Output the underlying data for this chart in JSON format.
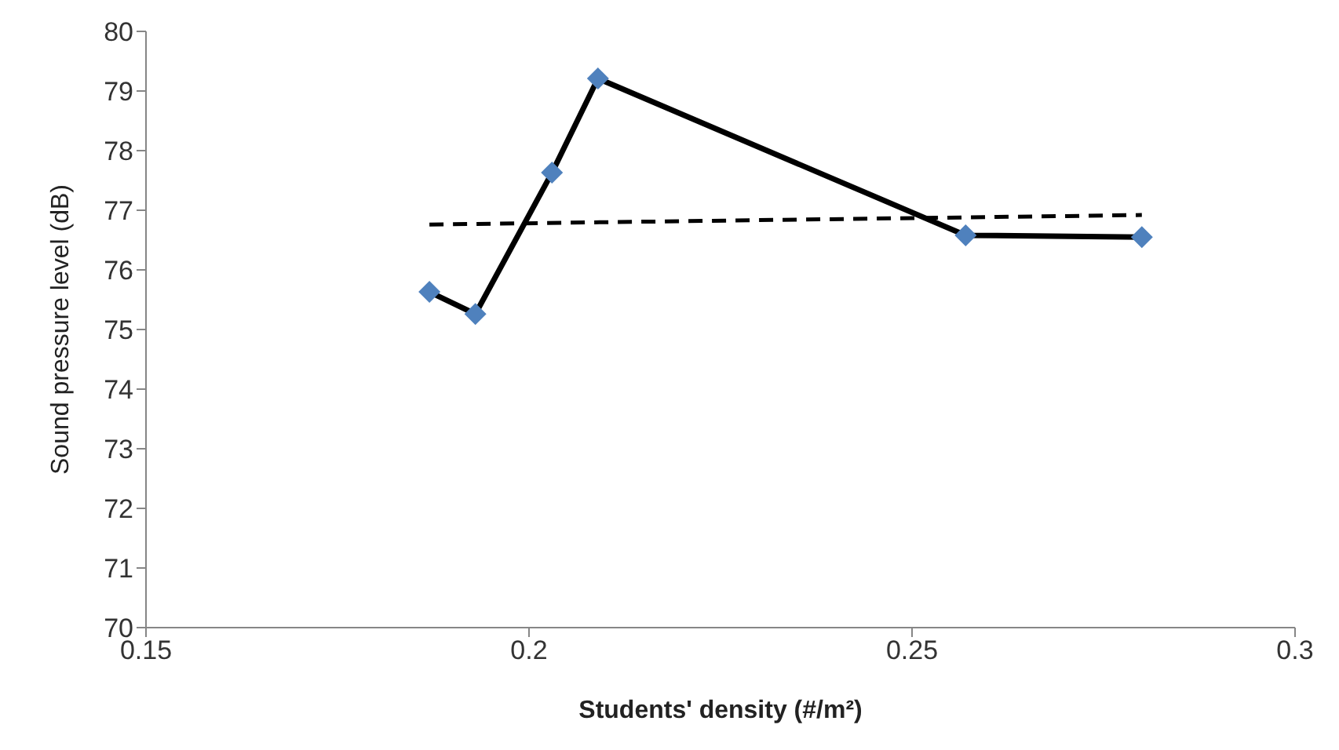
{
  "chart_data": {
    "type": "line",
    "xlabel": "Students' density (#/m²)",
    "ylabel": "Sound pressure level (dB)",
    "series": [
      {
        "color": "#000000",
        "colors": [
          "#4f81bd",
          "#4f81bd",
          "#4f81bd",
          "#4f81bd",
          "#4f81bd",
          "#4f81bd"
        ],
        "marker": "diamond",
        "line_style": "solid",
        "x": [
          0.187,
          0.193,
          0.203,
          0.209,
          0.257,
          0.28
        ],
        "values": [
          75.63,
          75.26,
          77.63,
          79.21,
          76.58,
          76.55
        ]
      },
      {
        "color": "#000000",
        "marker": "none",
        "line_style": "dashed",
        "x": [
          0.187,
          0.28
        ],
        "values": [
          76.76,
          76.92
        ]
      }
    ],
    "xlim": [
      0.15,
      0.3
    ],
    "xticks": [
      0.15,
      0.2,
      0.25,
      0.3
    ],
    "ylim": [
      70,
      80
    ],
    "yticks": [
      70,
      71,
      72,
      73,
      74,
      75,
      76,
      77,
      78,
      79,
      80
    ],
    "grid": false,
    "legend": false
  }
}
